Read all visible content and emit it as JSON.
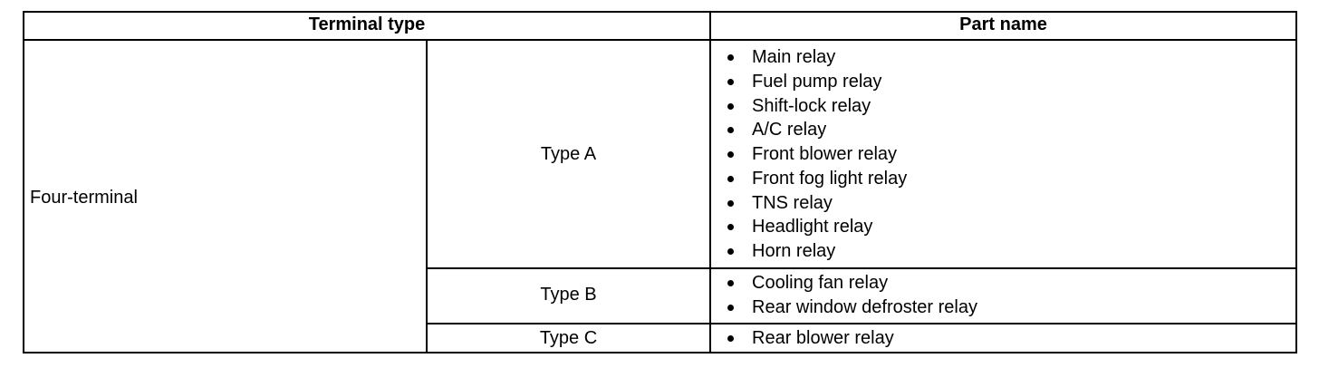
{
  "table": {
    "headers": {
      "terminal_type": "Terminal type",
      "part_name": "Part name"
    },
    "terminal": "Four-terminal",
    "rows": [
      {
        "type": "Type A",
        "parts": [
          "Main relay",
          "Fuel pump relay",
          "Shift-lock relay",
          "A/C relay",
          "Front blower relay",
          "Front fog light relay",
          "TNS relay",
          "Headlight relay",
          "Horn relay"
        ]
      },
      {
        "type": "Type B",
        "parts": [
          "Cooling fan relay",
          "Rear window defroster relay"
        ]
      },
      {
        "type": "Type C",
        "parts": [
          "Rear blower relay"
        ]
      }
    ]
  }
}
